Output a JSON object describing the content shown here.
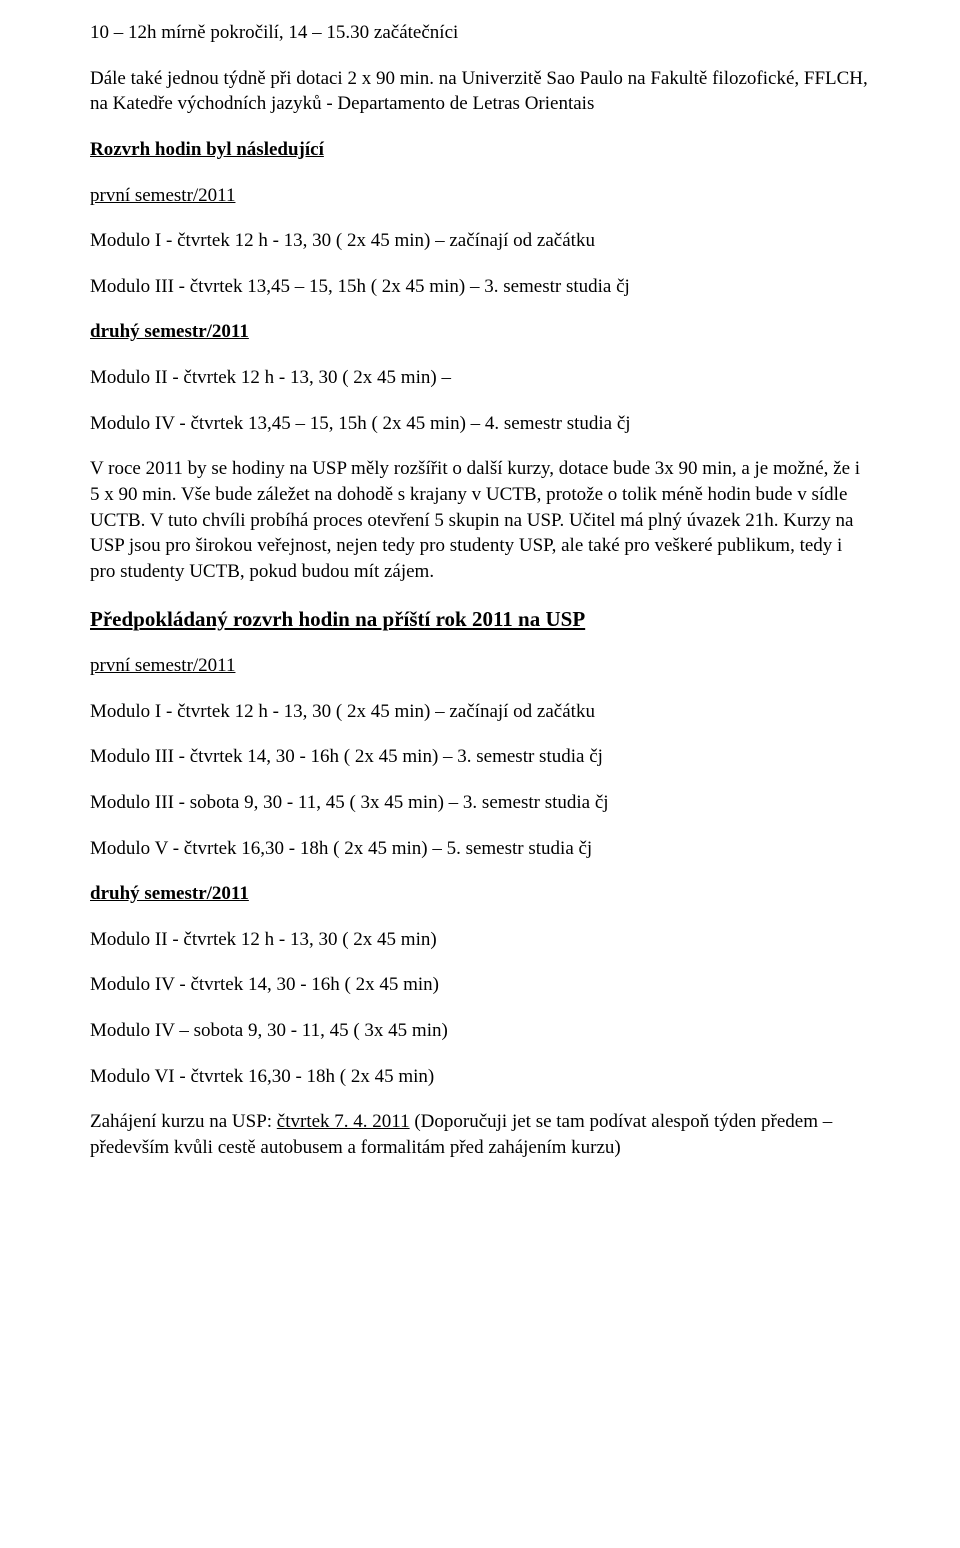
{
  "text_color": "#000000",
  "background_color": "#ffffff",
  "font_family": "Times New Roman",
  "base_fontsize": 19,
  "line1": "10 – 12h mírně pokročilí, 14 – 15.30 začátečníci",
  "line2": "Dále také jednou týdně při dotaci 2 x 90 min. na Univerzitě Sao Paulo na Fakultě filozofické, FFLCH, na Katedře východních jazyků - Departamento de Letras Orientais",
  "heading1": "Rozvrh hodin byl následující",
  "sem1_title": "první semestr/2011",
  "sem1_line1": "Modulo I  - čtvrtek 12 h - 13, 30 ( 2x 45 min) – začínají od začátku",
  "sem1_line2": "Modulo III - čtvrtek 13,45 – 15, 15h ( 2x 45 min) – 3. semestr studia čj",
  "sem2_title": "druhý semestr/2011",
  "sem2_line1": " Modulo II - čtvrtek 12 h - 13, 30 ( 2x 45 min) –",
  "sem2_line2": "Modulo IV - čtvrtek 13,45 – 15, 15h ( 2x 45 min) – 4. semestr studia čj",
  "big_para": "V roce 2011 by se hodiny na USP měly rozšířit o další kurzy, dotace bude 3x 90 min, a je možné, že i 5 x 90 min. Vše bude záležet na dohodě s krajany v UCTB, protože o tolik méně hodin bude v sídle UCTB. V tuto chvíli probíhá proces otevření 5 skupin na USP. Učitel má plný úvazek 21h. Kurzy na USP jsou pro širokou veřejnost, nejen tedy pro studenty USP, ale také pro veškeré publikum, tedy i pro studenty UCTB, pokud budou mít zájem.",
  "heading2": "Předpokládaný rozvrh hodin na příští rok 2011 na USP",
  "p_sem1_title": "první semestr/2011",
  "p_sem1_l1": "Modulo I  - čtvrtek 12 h - 13, 30 ( 2x 45 min) – začínají od začátku",
  "p_sem1_l2": "Modulo III - čtvrtek 14, 30 - 16h ( 2x 45 min) – 3. semestr studia čj",
  "p_sem1_l3": "Modulo III - sobota 9, 30 - 11, 45 ( 3x 45 min) – 3. semestr studia čj",
  "p_sem1_l4": "Modulo V - čtvrtek 16,30 - 18h ( 2x 45 min) – 5. semestr studia čj",
  "p_sem2_title": "druhý semestr/2011",
  "p_sem2_l1": "Modulo II - čtvrtek 12 h - 13, 30 ( 2x 45 min)",
  "p_sem2_l2": "Modulo IV - čtvrtek 14, 30 - 16h ( 2x 45 min)",
  "p_sem2_l3": "Modulo IV – sobota  9, 30 - 11, 45 ( 3x 45 min)",
  "p_sem2_l4": "Modulo VI - čtvrtek 16,30 - 18h ( 2x 45 min)",
  "final_prefix": "Zahájení kurzu na USP: ",
  "final_date": "čtvrtek 7. 4. 2011",
  "final_suffix": " (Doporučuji jet se tam podívat alespoň týden předem – především kvůli cestě autobusem a formalitám před zahájením kurzu)",
  "heading2_fontsize": 21
}
